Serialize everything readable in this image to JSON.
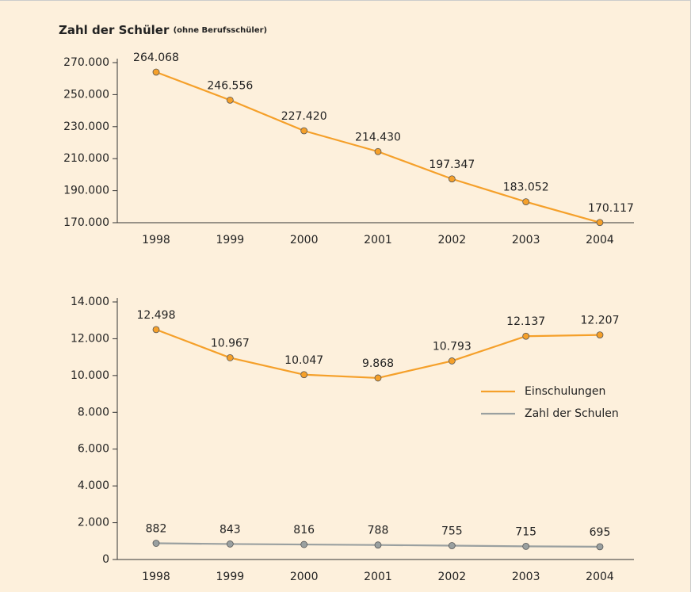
{
  "chart_data": [
    {
      "type": "line",
      "title": "Zahl der Schüler",
      "subtitle": "(ohne Berufsschüler)",
      "categories": [
        "1998",
        "1999",
        "2000",
        "2001",
        "2002",
        "2003",
        "2004"
      ],
      "values": [
        264068,
        246556,
        227420,
        214430,
        197347,
        183052,
        170117
      ],
      "value_labels": [
        "264.068",
        "246.556",
        "227.420",
        "214.430",
        "197.347",
        "183.052",
        "170.117"
      ],
      "color": "#f5a02a",
      "ylim": [
        170000,
        270000
      ],
      "yticks": [
        {
          "value": 170000,
          "label": "170.000"
        },
        {
          "value": 190000,
          "label": "190.000"
        },
        {
          "value": 210000,
          "label": "210.000"
        },
        {
          "value": 230000,
          "label": "230.000"
        },
        {
          "value": 250000,
          "label": "250.000"
        },
        {
          "value": 270000,
          "label": "270.000"
        }
      ]
    },
    {
      "type": "line",
      "categories": [
        "1998",
        "1999",
        "2000",
        "2001",
        "2002",
        "2003",
        "2004"
      ],
      "series": [
        {
          "name": "Einschulungen",
          "color": "#f5a02a",
          "values": [
            12498,
            10967,
            10047,
            9868,
            10793,
            12137,
            12207
          ],
          "value_labels": [
            "12.498",
            "10.967",
            "10.047",
            "9.868",
            "10.793",
            "12.137",
            "12.207"
          ]
        },
        {
          "name": "Zahl der Schulen",
          "color": "#9aa0a0",
          "values": [
            882,
            843,
            816,
            788,
            755,
            715,
            695
          ]
        }
      ],
      "ylim": [
        0,
        14000
      ],
      "yticks": [
        0,
        {
          "value": 2000,
          "label": "2.000"
        },
        {
          "value": 4000,
          "label": "4.000"
        },
        {
          "value": 6000,
          "label": "6.000"
        },
        {
          "value": 8000,
          "label": "8.000"
        },
        {
          "value": 10000,
          "label": "10.000"
        },
        {
          "value": 12000,
          "label": "12.000"
        },
        {
          "value": 14000,
          "label": "14.000"
        }
      ],
      "legend": "right"
    }
  ]
}
